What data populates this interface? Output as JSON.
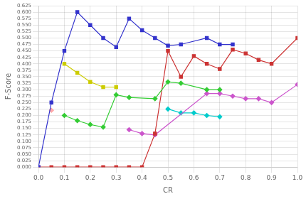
{
  "chart_data": {
    "type": "line",
    "xlabel": "CR",
    "ylabel": "F-Score",
    "xlim": [
      0.0,
      1.0
    ],
    "ylim": [
      0.0,
      0.625
    ],
    "xticks": [
      {
        "value": 0,
        "label": "0.0"
      },
      0.1,
      0.2,
      0.3,
      0.4,
      0.5,
      0.6,
      0.7,
      0.8,
      0.9,
      {
        "value": 1,
        "label": "1.0"
      }
    ],
    "yticks": [
      {
        "value": 0,
        "label": "0.000"
      },
      0.025,
      {
        "value": 0.05,
        "label": "0.050"
      },
      0.075,
      {
        "value": 0.1,
        "label": "0.100"
      },
      0.125,
      {
        "value": 0.15,
        "label": "0.150"
      },
      0.175,
      {
        "value": 0.2,
        "label": "0.200"
      },
      0.225,
      {
        "value": 0.25,
        "label": "0.250"
      },
      0.275,
      {
        "value": 0.3,
        "label": "0.300"
      },
      0.325,
      {
        "value": 0.35,
        "label": "0.350"
      },
      0.375,
      {
        "value": 0.4,
        "label": "0.400"
      },
      0.425,
      {
        "value": 0.45,
        "label": "0.450"
      },
      0.475,
      {
        "value": 0.5,
        "label": "0.500"
      },
      0.525,
      {
        "value": 0.55,
        "label": "0.550"
      },
      0.575,
      {
        "value": 0.6,
        "label": "0.600"
      },
      0.625
    ],
    "grid": true,
    "series": [
      {
        "color": "#3333cc",
        "marker": "square",
        "x": [
          0.0,
          0.05,
          0.1,
          0.15,
          0.2,
          0.25,
          0.3,
          0.35,
          0.4,
          0.45,
          0.5,
          0.55,
          0.65,
          0.7,
          0.75
        ],
        "values": [
          0.0,
          0.25,
          0.45,
          0.6,
          0.55,
          0.5,
          0.465,
          0.575,
          0.53,
          0.5,
          0.47,
          0.475,
          0.5,
          0.475,
          0.475
        ]
      },
      {
        "color": "#cccc00",
        "marker": "square",
        "x": [
          0.1,
          0.15,
          0.2,
          0.25,
          0.3
        ],
        "values": [
          0.4,
          0.365,
          0.33,
          0.31,
          0.31
        ]
      },
      {
        "color": "#33cc33",
        "marker": "diamond",
        "x": [
          0.1,
          0.15,
          0.2,
          0.25,
          0.3,
          0.35,
          0.45,
          0.5,
          0.55,
          0.65,
          0.7
        ],
        "values": [
          0.2,
          0.18,
          0.165,
          0.155,
          0.28,
          0.27,
          0.265,
          0.33,
          0.325,
          0.3,
          0.3
        ]
      },
      {
        "color": "#cc3333",
        "marker": "square",
        "x": [
          0.0,
          0.05,
          0.1,
          0.15,
          0.2,
          0.25,
          0.3,
          0.35,
          0.4,
          0.45,
          0.5,
          0.55,
          0.6,
          0.65,
          0.7,
          0.75,
          0.8,
          0.85,
          0.9,
          1.0
        ],
        "values": [
          0.0,
          0.0,
          0.0,
          0.0,
          0.0,
          0.0,
          0.0,
          0.0,
          0.0,
          0.13,
          0.45,
          0.35,
          0.43,
          0.4,
          0.38,
          0.455,
          0.44,
          0.415,
          0.4,
          0.5
        ]
      },
      {
        "color": "#cc55cc",
        "marker": "diamond",
        "x": [
          0.35,
          0.4,
          0.45,
          0.65,
          0.7,
          0.75,
          0.8,
          0.85,
          0.9,
          1.0
        ],
        "values": [
          0.145,
          0.13,
          0.125,
          0.285,
          0.285,
          0.275,
          0.265,
          0.265,
          0.25,
          0.32
        ]
      },
      {
        "color": "#00cccc",
        "marker": "diamond",
        "x": [
          0.5,
          0.55,
          0.6,
          0.65,
          0.7
        ],
        "values": [
          0.225,
          0.21,
          0.21,
          0.2,
          0.195
        ]
      },
      {
        "color": "#ffaaaa",
        "marker": "diamond",
        "x": [
          0.05
        ],
        "values": [
          0.22
        ]
      }
    ]
  }
}
